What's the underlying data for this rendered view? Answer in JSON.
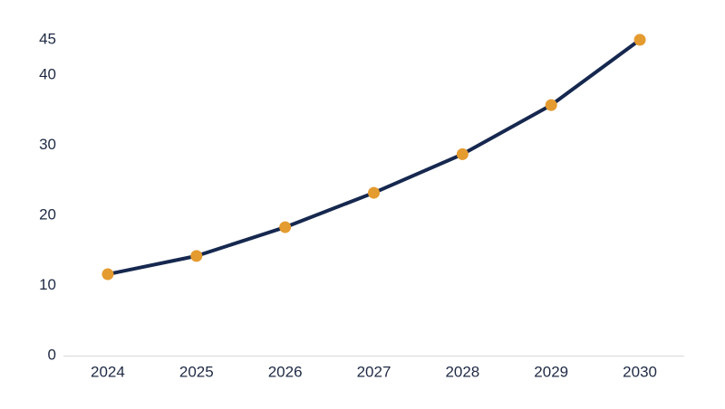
{
  "chart_data": {
    "type": "line",
    "categories": [
      "2024",
      "2025",
      "2026",
      "2027",
      "2028",
      "2029",
      "2030"
    ],
    "series": [
      {
        "color": "#16284f",
        "marker_color": "#e49b2f",
        "values": [
          11.6,
          14.2,
          18.3,
          23.2,
          28.7,
          35.7,
          45
        ]
      }
    ],
    "ylim": [
      0,
      45
    ],
    "yticks": [
      0,
      10,
      20,
      30,
      40,
      45
    ],
    "grid": false
  }
}
